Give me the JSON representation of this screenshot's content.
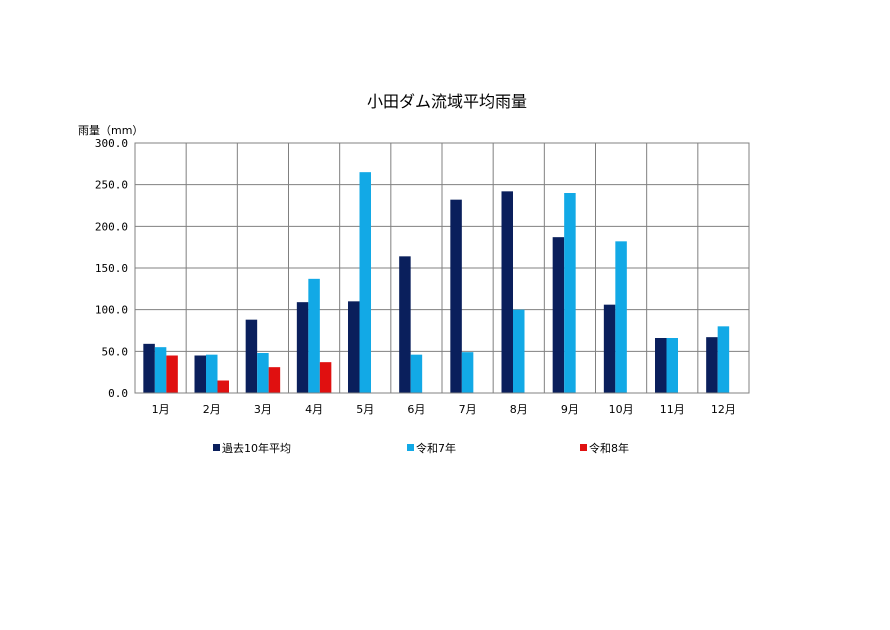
{
  "chart_data": {
    "type": "bar",
    "title": "小田ダム流域平均雨量",
    "ylabel": "雨量（mm）",
    "xlabel": "",
    "ylim": [
      0,
      300
    ],
    "yticks": [
      "0.0",
      "50.0",
      "100.0",
      "150.0",
      "200.0",
      "250.0",
      "300.0"
    ],
    "grid": true,
    "legend_position": "bottom",
    "categories": [
      "1月",
      "2月",
      "3月",
      "4月",
      "5月",
      "6月",
      "7月",
      "8月",
      "9月",
      "10月",
      "11月",
      "12月"
    ],
    "series": [
      {
        "name": "過去10年平均",
        "color": "#0a1f5c",
        "values": [
          59,
          45,
          88,
          109,
          110,
          164,
          232,
          242,
          187,
          106,
          66,
          67
        ]
      },
      {
        "name": "令和7年",
        "color": "#12a9e6",
        "values": [
          55,
          46,
          48,
          137,
          265,
          46,
          49,
          100,
          240,
          182,
          66,
          80
        ]
      },
      {
        "name": "令和8年",
        "color": "#e01010",
        "values": [
          45,
          15,
          31,
          37,
          null,
          null,
          null,
          null,
          null,
          null,
          null,
          null
        ]
      }
    ]
  }
}
